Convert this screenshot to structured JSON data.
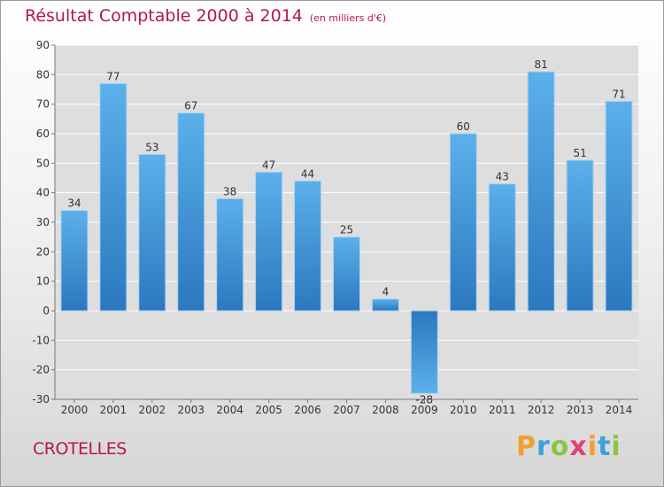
{
  "header": {
    "title": "Résultat Comptable 2000 à 2014",
    "subtitle": "(en milliers d'€)"
  },
  "footer": {
    "commune": "CROTELLES",
    "logo_letters": [
      "P",
      "r",
      "o",
      "x",
      "i",
      "t",
      "i"
    ],
    "logo_colors": [
      "#f0a030",
      "#3aa0e0",
      "#8cc63f",
      "#e0407a",
      "#f0a030",
      "#3aa0e0",
      "#8cc63f"
    ]
  },
  "chart_data": {
    "type": "bar",
    "title": "Résultat Comptable 2000 à 2014",
    "subtitle": "(en milliers d'€)",
    "categories": [
      "2000",
      "2001",
      "2002",
      "2003",
      "2004",
      "2005",
      "2006",
      "2007",
      "2008",
      "2009",
      "2010",
      "2011",
      "2012",
      "2013",
      "2014"
    ],
    "values": [
      34,
      77,
      53,
      67,
      38,
      47,
      44,
      25,
      4,
      -28,
      60,
      43,
      81,
      51,
      71
    ],
    "value_labels": [
      "34",
      "77",
      "53",
      "67",
      "38",
      "47",
      "44",
      "25",
      "4",
      "-28",
      "60",
      "43",
      "81",
      "51",
      "71"
    ],
    "ylim": [
      -30,
      90
    ],
    "yticks": [
      -30,
      -20,
      -10,
      0,
      10,
      20,
      30,
      40,
      50,
      60,
      70,
      80,
      90
    ],
    "grid": true,
    "colors": {
      "bar_top": "#5cb0ea",
      "bar_bottom": "#2b78bf",
      "grid": "#ffffff",
      "axis": "#777777"
    }
  }
}
